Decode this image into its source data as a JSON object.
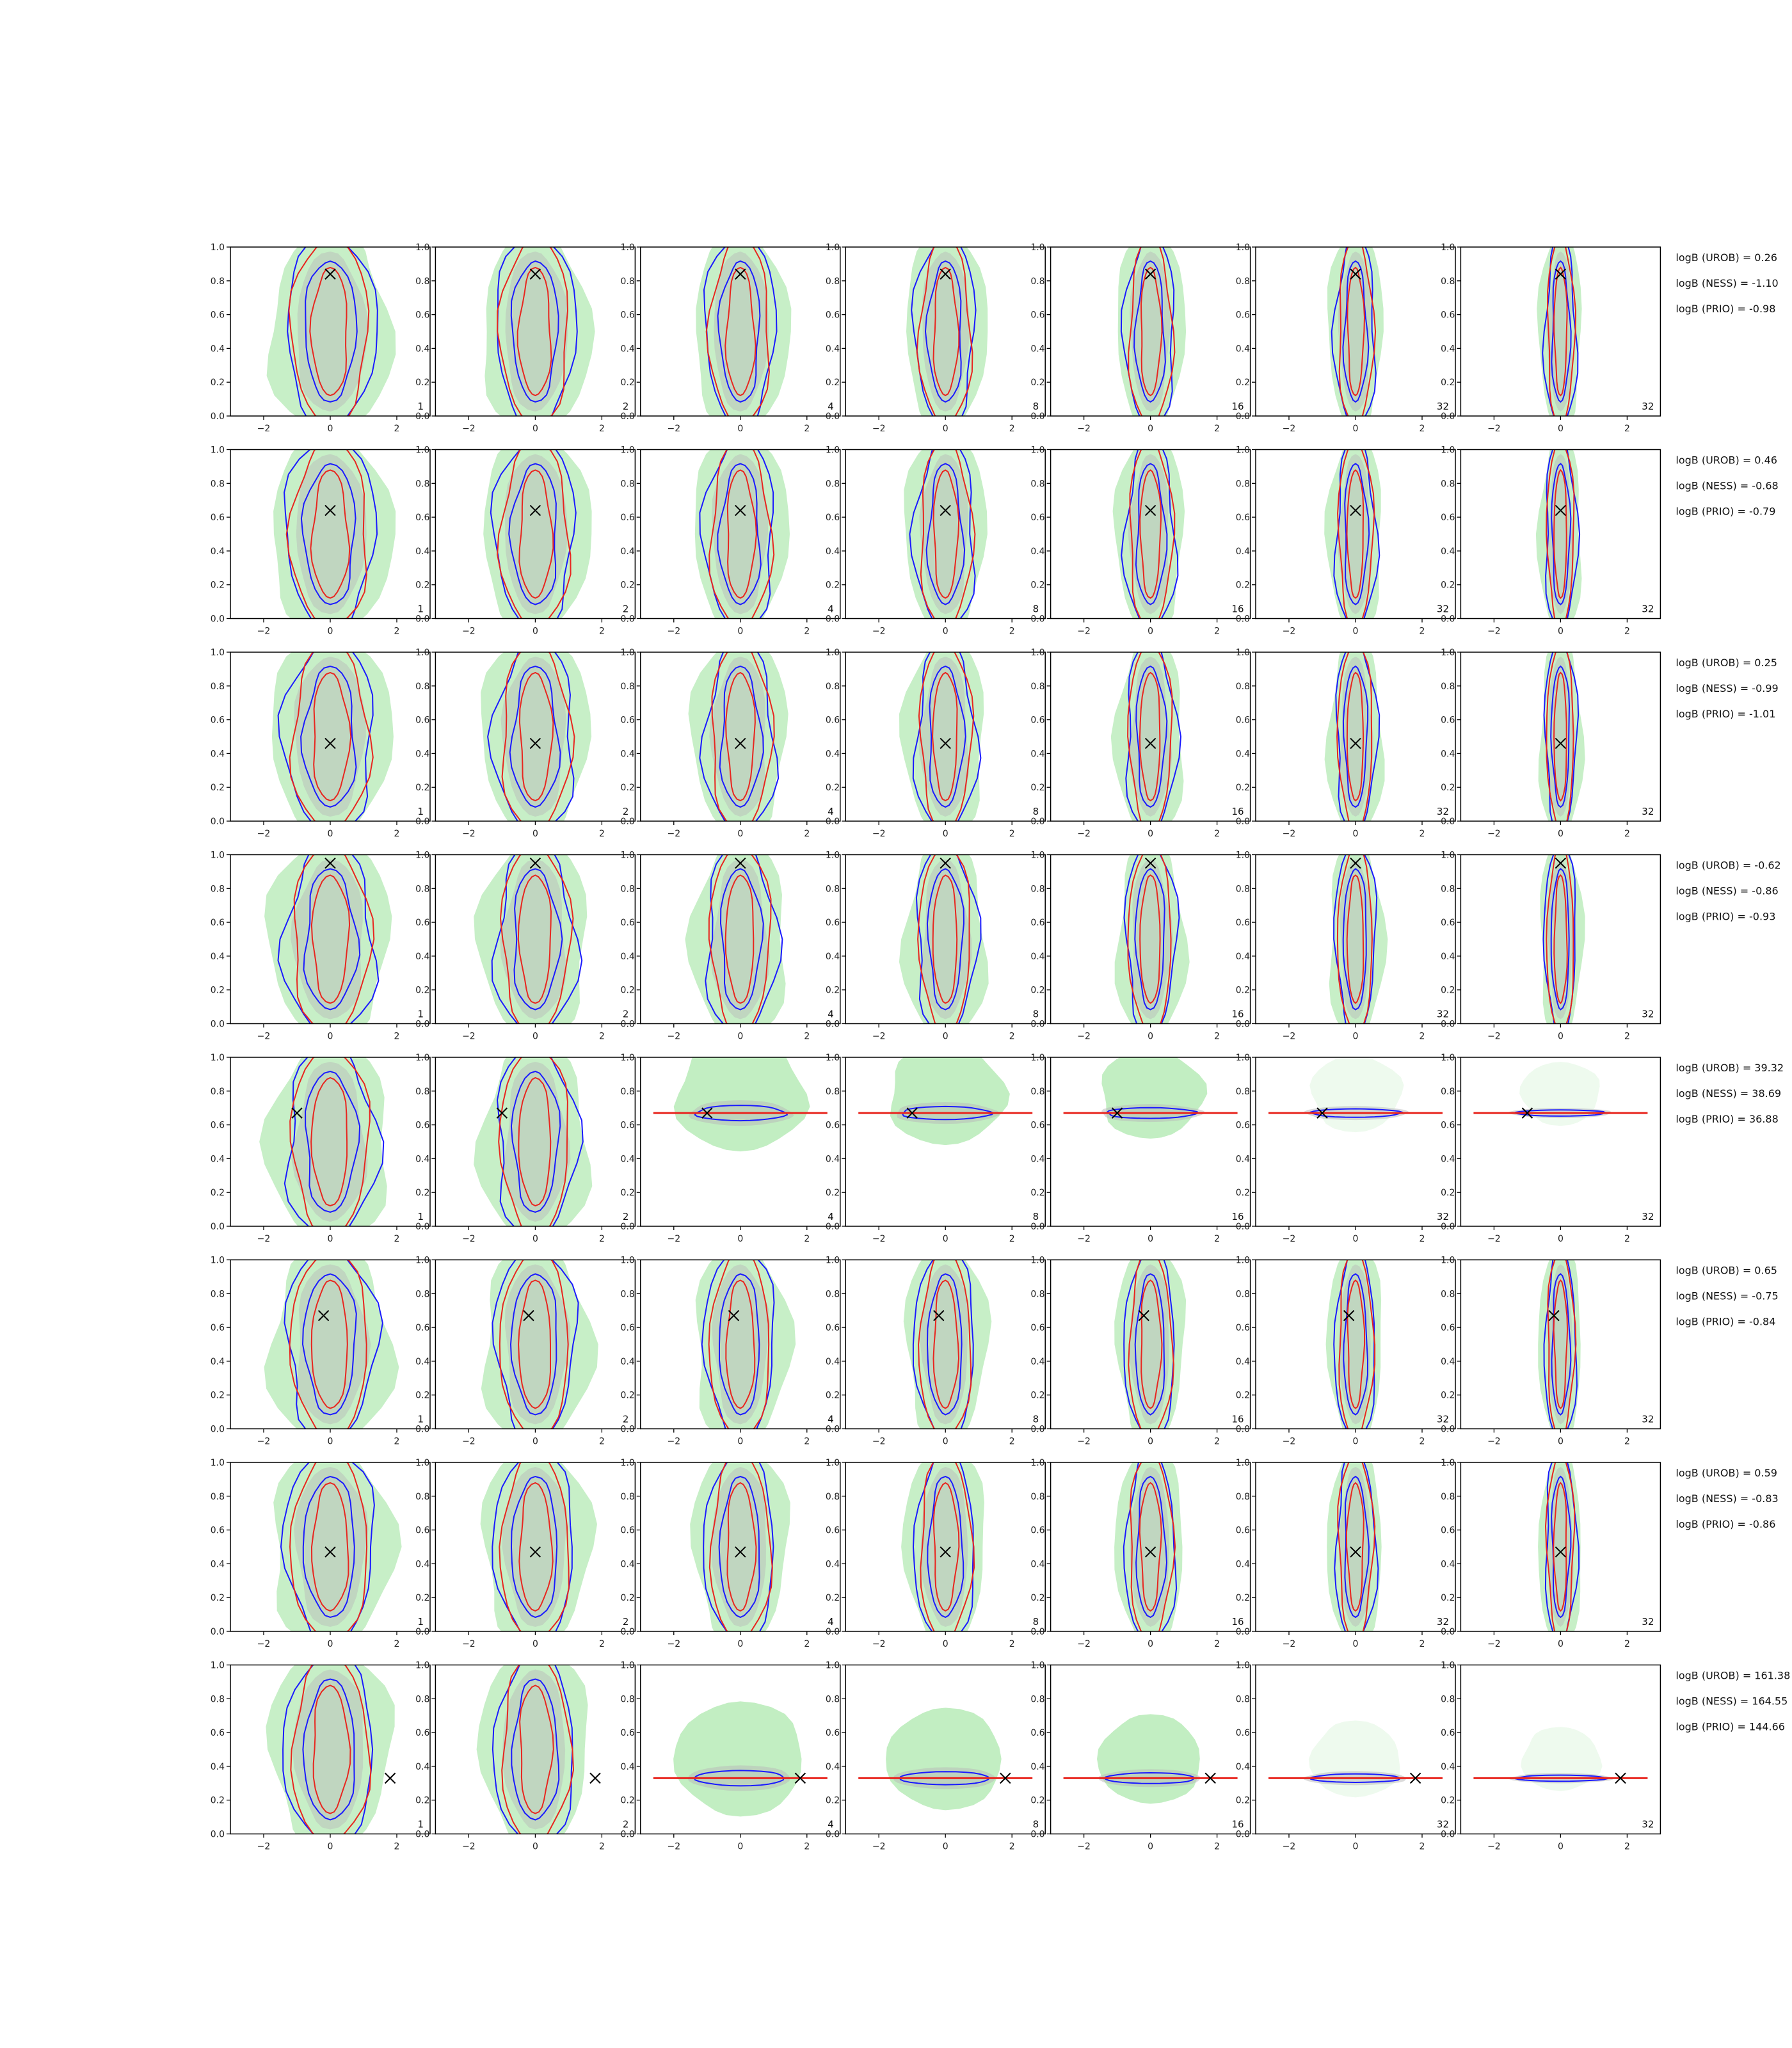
{
  "chart_data": {
    "type": "contour-grid",
    "rows": 8,
    "cols": 7,
    "xlim": [
      -3,
      3
    ],
    "ylim": [
      0,
      1
    ],
    "xticks": [
      "−2",
      "0",
      "2"
    ],
    "yticks": [
      "0.0",
      "0.2",
      "0.4",
      "0.6",
      "0.8",
      "1.0"
    ],
    "column_counts": [
      "1",
      "2",
      "4",
      "8",
      "16",
      "32",
      "32"
    ],
    "colors": {
      "blue_contour": "#1a1aff",
      "red_contour": "#e8261f",
      "green_fill": "#8fe08f",
      "grey_fill": "#b8b8b8",
      "true_marker": "#000000"
    },
    "row_panels": [
      {
        "true_point": [
          0,
          0.84
        ],
        "bayes_factors": [
          "logB (UROB) = 0.26",
          "logB (NESS) = -1.10",
          "logB (PRIO) = -0.98"
        ]
      },
      {
        "true_point": [
          0,
          0.64
        ],
        "bayes_factors": [
          "logB (UROB) = 0.46",
          "logB (NESS) = -0.68",
          "logB (PRIO) = -0.79"
        ]
      },
      {
        "true_point": [
          0,
          0.46
        ],
        "bayes_factors": [
          "logB (UROB) = 0.25",
          "logB (NESS) = -0.99",
          "logB (PRIO) = -1.01"
        ]
      },
      {
        "true_point": [
          0,
          0.95
        ],
        "bayes_factors": [
          "logB (UROB) = -0.62",
          "logB (NESS) = -0.86",
          "logB (PRIO) = -0.93"
        ]
      },
      {
        "true_point": [
          -1,
          0.67
        ],
        "bayes_factors": [
          "logB (UROB) = 39.32",
          "logB (NESS) = 38.69",
          "logB (PRIO) = 36.88"
        ]
      },
      {
        "true_point": [
          -0.2,
          0.67
        ],
        "bayes_factors": [
          "logB (UROB) = 0.65",
          "logB (NESS) = -0.75",
          "logB (PRIO) = -0.84"
        ]
      },
      {
        "true_point": [
          0,
          0.47
        ],
        "bayes_factors": [
          "logB (UROB) = 0.59",
          "logB (NESS) = -0.83",
          "logB (PRIO) = -0.86"
        ]
      },
      {
        "true_point": [
          1.8,
          0.33
        ],
        "bayes_factors": [
          "logB (UROB) = 161.38",
          "logB (NESS) = 164.55",
          "logB (PRIO) = 144.66"
        ]
      }
    ]
  }
}
